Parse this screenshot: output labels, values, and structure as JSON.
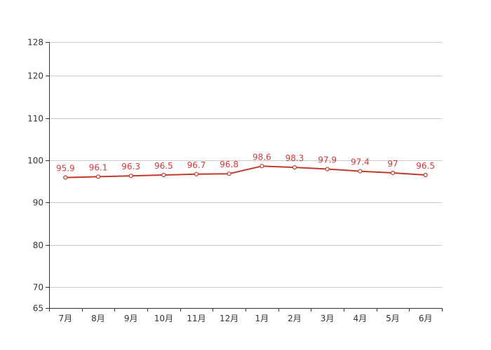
{
  "chart_data": {
    "type": "line",
    "categories": [
      "7月",
      "8月",
      "9月",
      "10月",
      "11月",
      "12月",
      "1月",
      "2月",
      "3月",
      "4月",
      "5月",
      "6月"
    ],
    "series": [
      {
        "values": [
          95.9,
          96.1,
          96.3,
          96.5,
          96.7,
          96.8,
          98.6,
          98.3,
          97.9,
          97.4,
          97,
          96.5
        ],
        "color": "#c0392b"
      }
    ],
    "data_labels": [
      "95.9",
      "96.1",
      "96.3",
      "96.5",
      "96.7",
      "96.8",
      "98.6",
      "98.3",
      "97.9",
      "97.4",
      "97",
      "96.5"
    ],
    "y_ticks": [
      65,
      70,
      80,
      90,
      100,
      110,
      120,
      128
    ],
    "y_tick_labels": [
      "65",
      "70",
      "80",
      "90",
      "100",
      "110",
      "120",
      "128"
    ],
    "ylim": [
      65,
      128
    ],
    "grid": true,
    "colors": {
      "line": "#c0392b",
      "label": "#d33a3a",
      "grid": "#cccccc",
      "axis": "#333333"
    }
  }
}
